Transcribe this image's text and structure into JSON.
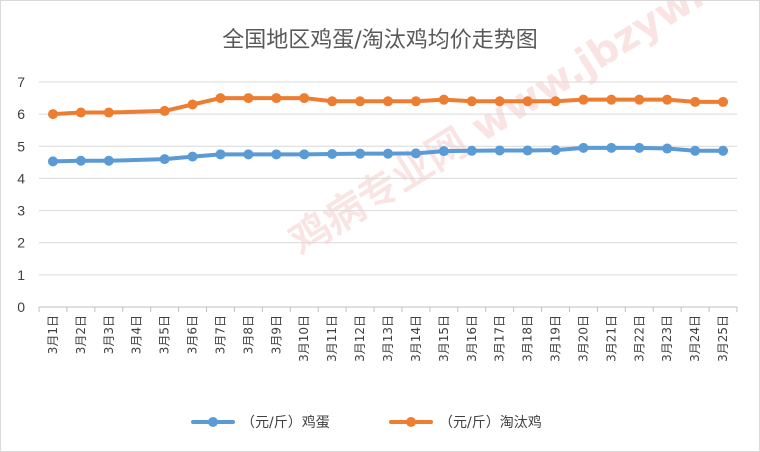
{
  "chart_data": {
    "type": "line",
    "title": "全国地区鸡蛋/淘汰鸡均价走势图",
    "categories": [
      "3月1日",
      "3月2日",
      "3月3日",
      "3月4日",
      "3月5日",
      "3月6日",
      "3月7日",
      "3月8日",
      "3月9日",
      "3月10日",
      "3月11日",
      "3月12日",
      "3月13日",
      "3月14日",
      "3月15日",
      "3月16日",
      "3月17日",
      "3月18日",
      "3月19日",
      "3月20日",
      "3月21日",
      "3月22日",
      "3月23日",
      "3月24日",
      "3月25日"
    ],
    "series": [
      {
        "name": "（元/斤）鸡蛋",
        "color": "#5b9bd5",
        "values": [
          4.53,
          4.55,
          4.55,
          null,
          4.6,
          4.68,
          4.75,
          4.75,
          4.75,
          4.75,
          4.76,
          4.77,
          4.77,
          4.78,
          4.85,
          4.86,
          4.87,
          4.87,
          4.88,
          4.95,
          4.95,
          4.95,
          4.93,
          4.86,
          4.86
        ]
      },
      {
        "name": "（元/斤）淘汰鸡",
        "color": "#ed7d31",
        "values": [
          6.0,
          6.05,
          6.05,
          null,
          6.1,
          6.3,
          6.5,
          6.5,
          6.5,
          6.5,
          6.4,
          6.4,
          6.4,
          6.4,
          6.45,
          6.4,
          6.4,
          6.4,
          6.4,
          6.45,
          6.45,
          6.45,
          6.45,
          6.38,
          6.38
        ]
      }
    ],
    "ylim": [
      0,
      7
    ],
    "yticks": [
      0,
      1,
      2,
      3,
      4,
      5,
      6,
      7
    ],
    "grid": true,
    "legend": "bottom",
    "watermark": "鸡病专业网 www.jbzyw.com"
  }
}
